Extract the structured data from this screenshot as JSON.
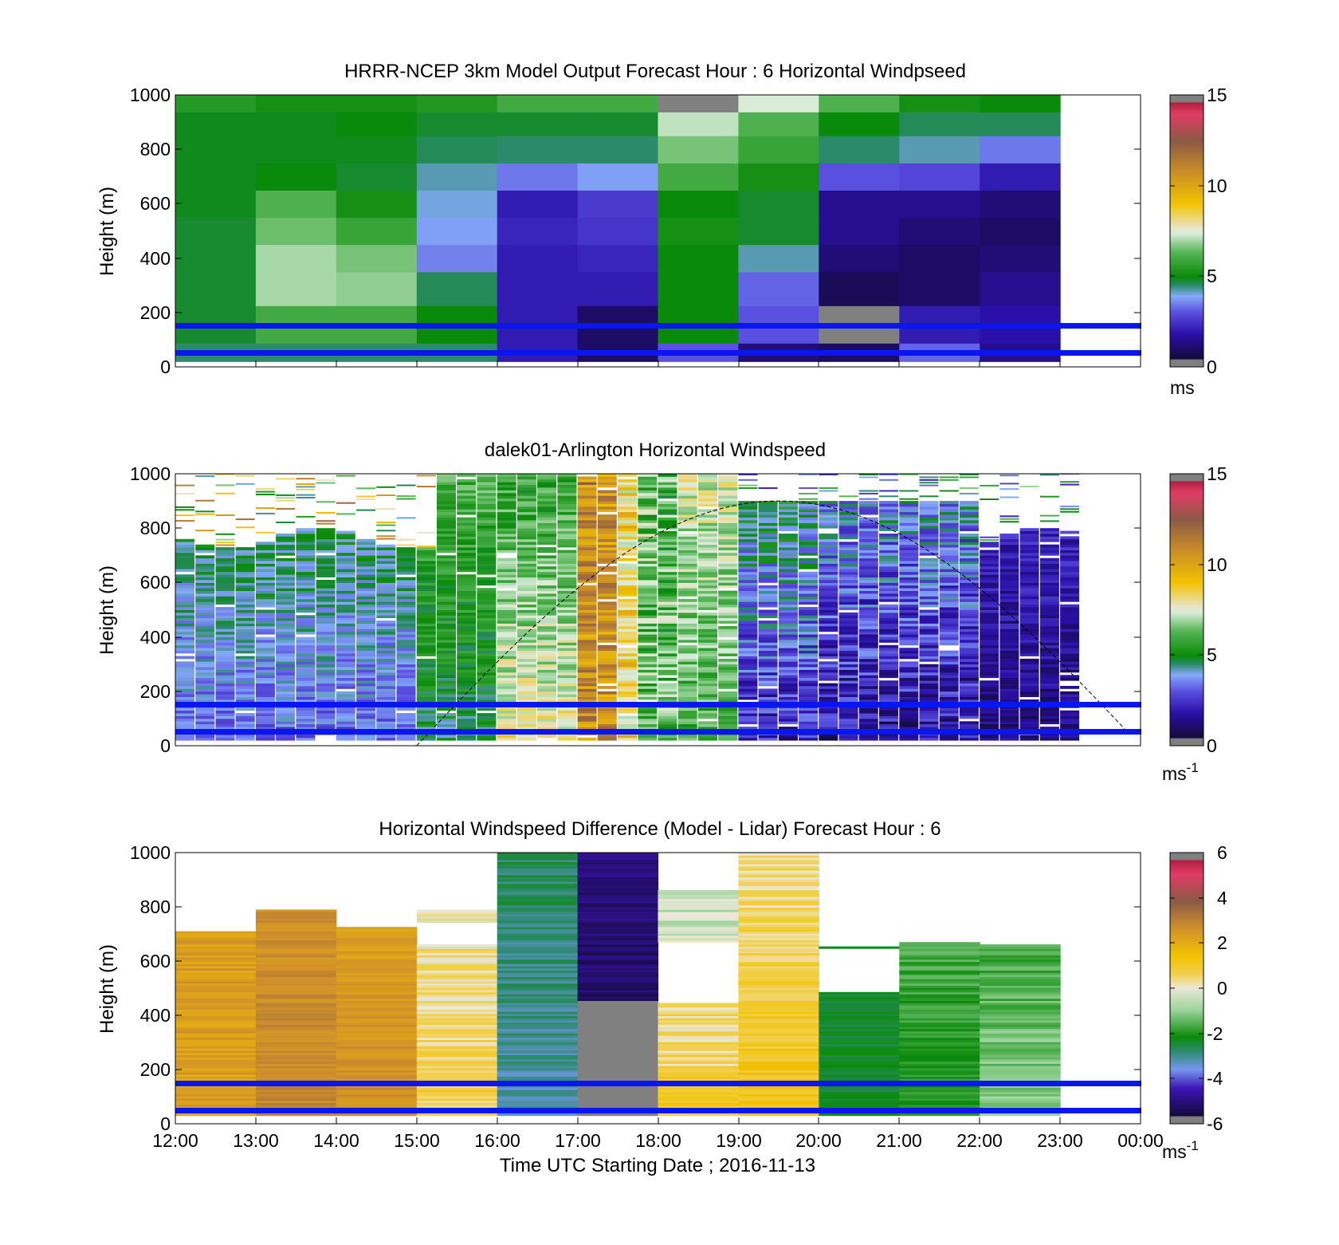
{
  "panels": [
    {
      "id": "model",
      "title": "HRRR-NCEP 3km Model Output   Forecast Hour : 6 Horizontal Windpseed",
      "ylabel": "Height (m)",
      "yticks": [
        "0",
        "200",
        "400",
        "600",
        "800",
        "1000"
      ],
      "colorbar": {
        "ticks": [
          "0",
          "5",
          "10",
          "15"
        ],
        "unit": "ms",
        "unit_sup": "",
        "range": [
          0,
          15
        ]
      }
    },
    {
      "id": "lidar",
      "title": "dalek01-Arlington  Horizontal Windspeed",
      "ylabel": "Height (m)",
      "yticks": [
        "0",
        "200",
        "400",
        "600",
        "800",
        "1000"
      ],
      "colorbar": {
        "ticks": [
          "0",
          "5",
          "10",
          "15"
        ],
        "unit": "ms",
        "unit_sup": "-1",
        "range": [
          0,
          15
        ]
      }
    },
    {
      "id": "diff",
      "title": "Horizontal Windspeed Difference (Model - Lidar) Forecast Hour : 6",
      "ylabel": "Height (m)",
      "yticks": [
        "0",
        "200",
        "400",
        "600",
        "800",
        "1000"
      ],
      "colorbar": {
        "ticks": [
          "-6",
          "-4",
          "-2",
          "0",
          "2",
          "4",
          "6"
        ],
        "unit": "ms",
        "unit_sup": "-1",
        "range": [
          -6,
          6
        ]
      }
    }
  ],
  "xaxis": {
    "ticks": [
      "12:00",
      "13:00",
      "14:00",
      "15:00",
      "16:00",
      "17:00",
      "18:00",
      "19:00",
      "20:00",
      "21:00",
      "22:00",
      "23:00",
      "00:00"
    ],
    "label": "Time UTC  Starting Date ; 2016-11-13"
  },
  "colors": {
    "reference_lines": "#0a16f0",
    "bad_data": "#808080",
    "windspeed_scale": [
      "#808080",
      "#140a3c",
      "#2a10a8",
      "#5a50e0",
      "#84aaf8",
      "#0a8a0a",
      "#54b454",
      "#d8ecd8",
      "#f2c200",
      "#c88c28",
      "#8c5a46",
      "#e03c64",
      "#808080"
    ],
    "difference_scale": [
      "#808080",
      "#140a3c",
      "#3c14b4",
      "#7896f0",
      "#0a8a0a",
      "#9cd49c",
      "#ece8d8",
      "#f2c200",
      "#d0902a",
      "#8a5a46",
      "#e03c64",
      "#808080"
    ]
  },
  "chart_data": [
    {
      "type": "heatmap",
      "title": "HRRR-NCEP 3km Model Output   Forecast Hour : 6 Horizontal Windpseed",
      "xlabel": "Time UTC  Starting Date ; 2016-11-13",
      "ylabel": "Height (m)",
      "ylim": [
        0,
        1000
      ],
      "xlim": [
        "12:00",
        "00:00"
      ],
      "colorbar_label": "ms",
      "colorbar_range": [
        0,
        15
      ],
      "hours": [
        "12:00",
        "13:00",
        "14:00",
        "15:00",
        "16:00",
        "17:00",
        "18:00",
        "19:00",
        "20:00",
        "21:00",
        "22:00"
      ],
      "heights": [
        25,
        150,
        300,
        400,
        500,
        600,
        700,
        800,
        900,
        975
      ],
      "values_ms": [
        [
          4.5,
          4.5,
          4.5,
          4.5,
          2.0,
          1.0,
          3.0,
          1.2,
          1.0,
          3.2,
          1.5
        ],
        [
          4.8,
          6.0,
          6.0,
          5.0,
          2.0,
          1.0,
          5.0,
          3.0,
          0.0,
          2.0,
          1.8
        ],
        [
          4.8,
          7.0,
          6.8,
          4.6,
          2.0,
          2.0,
          5.0,
          3.2,
          0.8,
          1.0,
          1.5
        ],
        [
          4.8,
          7.0,
          6.6,
          3.5,
          2.0,
          2.2,
          5.0,
          4.2,
          1.2,
          1.0,
          1.2
        ],
        [
          4.8,
          6.5,
          5.8,
          3.8,
          2.2,
          2.5,
          5.2,
          4.8,
          1.5,
          1.2,
          1.0
        ],
        [
          4.9,
          6.2,
          5.2,
          4.0,
          2.0,
          2.6,
          5.0,
          4.8,
          1.5,
          1.5,
          1.2
        ],
        [
          4.9,
          5.0,
          4.8,
          4.2,
          3.4,
          3.8,
          6.0,
          5.2,
          3.0,
          2.8,
          2.0
        ],
        [
          4.9,
          4.9,
          4.9,
          4.6,
          4.5,
          4.5,
          6.6,
          5.8,
          4.5,
          4.2,
          3.4
        ],
        [
          4.9,
          4.9,
          5.0,
          4.8,
          4.8,
          4.8,
          7.2,
          6.2,
          5.0,
          4.6,
          4.6
        ],
        [
          5.5,
          5.2,
          5.2,
          5.4,
          6.0,
          6.0,
          0.0,
          7.4,
          6.2,
          5.2,
          5.0
        ]
      ],
      "reference_lines_height_m": [
        50,
        150
      ]
    },
    {
      "type": "heatmap",
      "title": "dalek01-Arlington  Horizontal Windspeed",
      "ylabel": "Height (m)",
      "ylim": [
        0,
        1000
      ],
      "xlim": [
        "12:00",
        "00:00"
      ],
      "colorbar_label": "ms-1",
      "colorbar_range": [
        0,
        15
      ],
      "reference_lines_height_m": [
        50,
        150
      ]
    },
    {
      "type": "heatmap",
      "title": "Horizontal Windspeed Difference (Model - Lidar) Forecast Hour : 6",
      "xlabel": "Time UTC  Starting Date ; 2016-11-13",
      "ylabel": "Height (m)",
      "ylim": [
        0,
        1000
      ],
      "xlim": [
        "12:00",
        "00:00"
      ],
      "colorbar_label": "ms-1",
      "colorbar_range": [
        -6,
        6
      ],
      "reference_lines_height_m": [
        50,
        150
      ]
    }
  ]
}
